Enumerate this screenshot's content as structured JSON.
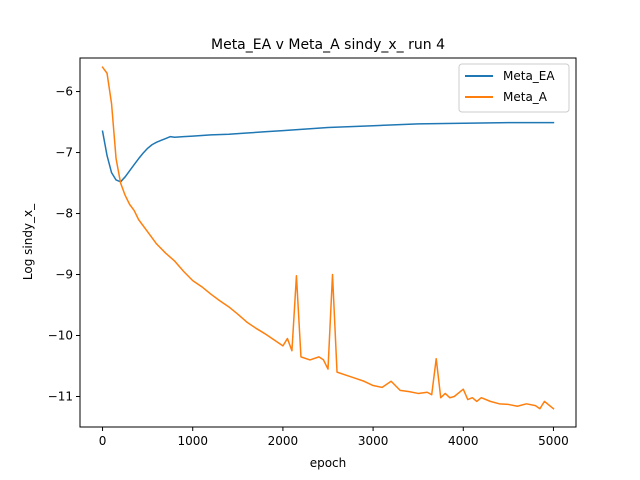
{
  "chart_data": {
    "type": "line",
    "title": "Meta_EA v Meta_A sindy_x_ run 4",
    "xlabel": "epoch",
    "ylabel": "Log sindy_x_",
    "xlim": [
      -250,
      5250
    ],
    "ylim": [
      -11.5,
      -5.45
    ],
    "xticks": [
      0,
      1000,
      2000,
      3000,
      4000,
      5000
    ],
    "xtick_labels": [
      "0",
      "1000",
      "2000",
      "3000",
      "4000",
      "5000"
    ],
    "yticks": [
      -11,
      -10,
      -9,
      -8,
      -7,
      -6
    ],
    "ytick_labels": [
      "−11",
      "−10",
      "−9",
      "−8",
      "−7",
      "−6"
    ],
    "grid": false,
    "legend_position": "top-right",
    "series": [
      {
        "name": "Meta_EA",
        "color": "#1f77b4",
        "x": [
          0,
          50,
          100,
          150,
          200,
          250,
          300,
          350,
          400,
          450,
          500,
          550,
          600,
          650,
          700,
          750,
          800,
          900,
          1000,
          1200,
          1400,
          1600,
          1800,
          2000,
          2200,
          2500,
          3000,
          3500,
          4000,
          4500,
          5000
        ],
        "y": [
          -6.65,
          -7.05,
          -7.33,
          -7.45,
          -7.48,
          -7.4,
          -7.3,
          -7.2,
          -7.1,
          -7.01,
          -6.93,
          -6.87,
          -6.83,
          -6.8,
          -6.77,
          -6.74,
          -6.75,
          -6.74,
          -6.73,
          -6.71,
          -6.7,
          -6.68,
          -6.66,
          -6.64,
          -6.62,
          -6.59,
          -6.56,
          -6.53,
          -6.52,
          -6.51,
          -6.51
        ]
      },
      {
        "name": "Meta_A",
        "color": "#ff7f0e",
        "x": [
          0,
          50,
          100,
          150,
          200,
          250,
          300,
          350,
          400,
          500,
          600,
          700,
          800,
          900,
          1000,
          1100,
          1200,
          1300,
          1400,
          1500,
          1600,
          1700,
          1800,
          1900,
          2000,
          2050,
          2100,
          2150,
          2200,
          2300,
          2400,
          2450,
          2500,
          2550,
          2600,
          2700,
          2800,
          2900,
          3000,
          3100,
          3200,
          3300,
          3400,
          3500,
          3600,
          3650,
          3700,
          3750,
          3800,
          3850,
          3900,
          4000,
          4050,
          4100,
          4150,
          4200,
          4300,
          4400,
          4500,
          4600,
          4700,
          4800,
          4850,
          4900,
          5000
        ],
        "y": [
          -5.6,
          -5.7,
          -6.2,
          -7.1,
          -7.5,
          -7.7,
          -7.85,
          -7.95,
          -8.1,
          -8.3,
          -8.5,
          -8.65,
          -8.78,
          -8.95,
          -9.1,
          -9.2,
          -9.32,
          -9.43,
          -9.53,
          -9.65,
          -9.78,
          -9.88,
          -9.97,
          -10.07,
          -10.17,
          -10.05,
          -10.25,
          -9.02,
          -10.35,
          -10.4,
          -10.35,
          -10.4,
          -10.55,
          -9.0,
          -10.6,
          -10.65,
          -10.7,
          -10.75,
          -10.82,
          -10.85,
          -10.75,
          -10.9,
          -10.92,
          -10.95,
          -10.93,
          -10.97,
          -10.38,
          -11.02,
          -10.95,
          -11.02,
          -11.0,
          -10.88,
          -11.05,
          -11.02,
          -11.08,
          -11.02,
          -11.08,
          -11.12,
          -11.13,
          -11.16,
          -11.12,
          -11.15,
          -11.2,
          -11.08,
          -11.2
        ]
      }
    ]
  }
}
